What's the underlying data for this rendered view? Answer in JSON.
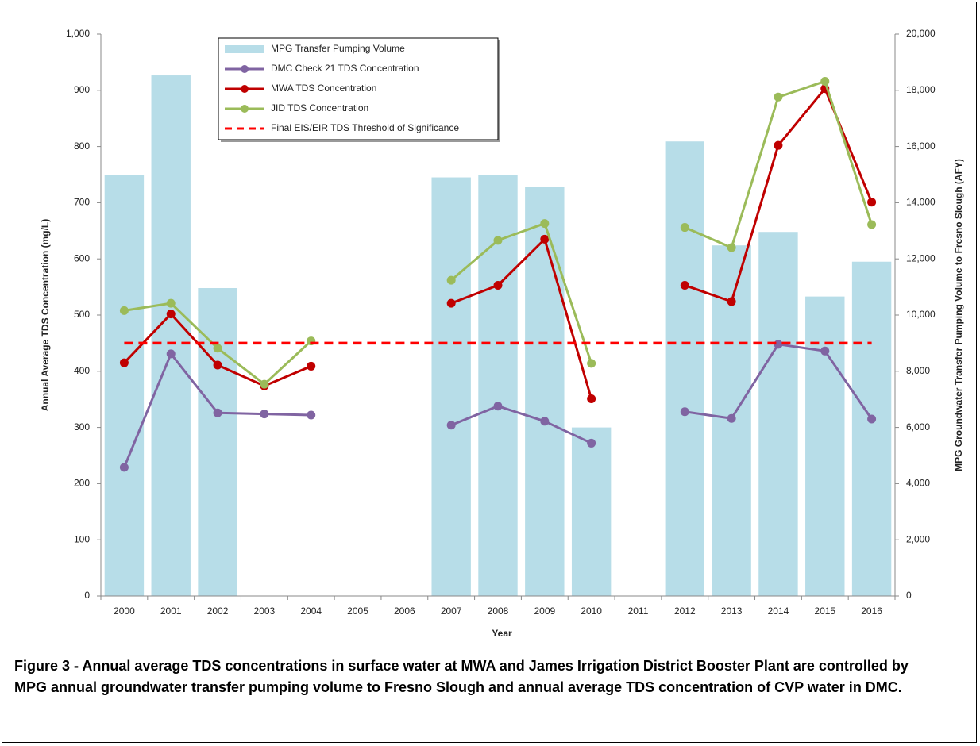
{
  "chart_data": {
    "type": "combo",
    "caption": "Figure 3 - Annual average TDS concentrations in surface water at MWA and James Irrigation District Booster Plant are controlled by MPG annual groundwater transfer pumping volume to Fresno Slough and annual average TDS concentration of CVP water in DMC.",
    "x_label": "Year",
    "y_label": "Annual Average TDS Concentration (mg/L)",
    "y2_label": "MPG Groundwater Transfer Pumping Volume to Fresno Slough (AFY)",
    "categories": [
      "2000",
      "2001",
      "2002",
      "2003",
      "2004",
      "2005",
      "2006",
      "2007",
      "2008",
      "2009",
      "2010",
      "2011",
      "2012",
      "2013",
      "2014",
      "2015",
      "2016"
    ],
    "ylim": [
      0,
      1000
    ],
    "yticks": [
      0,
      100,
      200,
      300,
      400,
      500,
      600,
      700,
      800,
      900,
      {
        "value": 1000,
        "label": "1,000"
      }
    ],
    "y2lim": [
      0,
      20000
    ],
    "y2ticks": [
      0,
      {
        "value": 2000,
        "label": "2,000"
      },
      {
        "value": 4000,
        "label": "4,000"
      },
      {
        "value": 6000,
        "label": "6,000"
      },
      {
        "value": 8000,
        "label": "8,000"
      },
      {
        "value": 10000,
        "label": "10,000"
      },
      {
        "value": 12000,
        "label": "12,000"
      },
      {
        "value": 14000,
        "label": "14,000"
      },
      {
        "value": 16000,
        "label": "16,000"
      },
      {
        "value": 18000,
        "label": "18,000"
      },
      {
        "value": 20000,
        "label": "20,000"
      }
    ],
    "legend": "upper left",
    "series": [
      {
        "name": "MPG Transfer Pumping Volume",
        "type": "bar",
        "axis": "y2",
        "color": "#b7dde8",
        "values": [
          15000,
          18530,
          10960,
          null,
          null,
          null,
          null,
          14900,
          14980,
          14560,
          6000,
          null,
          16180,
          12480,
          12960,
          10660,
          11900
        ]
      },
      {
        "name": "DMC Check 21 TDS Concentration",
        "type": "line",
        "marker": true,
        "color": "#8064a2",
        "values": [
          229,
          431,
          326,
          324,
          322,
          null,
          null,
          304,
          338,
          311,
          272,
          null,
          328,
          316,
          448,
          436,
          315
        ]
      },
      {
        "name": "MWA TDS Concentration",
        "type": "line",
        "marker": true,
        "color": "#c00000",
        "values": [
          415,
          502,
          411,
          374,
          409,
          null,
          null,
          521,
          553,
          635,
          351,
          null,
          553,
          524,
          802,
          903,
          701
        ]
      },
      {
        "name": "JID TDS Concentration",
        "type": "line",
        "marker": true,
        "color": "#9bbb59",
        "values": [
          508,
          521,
          441,
          377,
          454,
          null,
          null,
          562,
          633,
          663,
          414,
          null,
          656,
          620,
          888,
          916,
          661
        ]
      },
      {
        "name": "Final EIS/EIR TDS Threshold of Significance",
        "type": "line",
        "dashed": true,
        "color": "#ff0000",
        "values": [
          450,
          450,
          450,
          450,
          450,
          450,
          450,
          450,
          450,
          450,
          450,
          450,
          450,
          450,
          450,
          450,
          450
        ]
      }
    ]
  }
}
